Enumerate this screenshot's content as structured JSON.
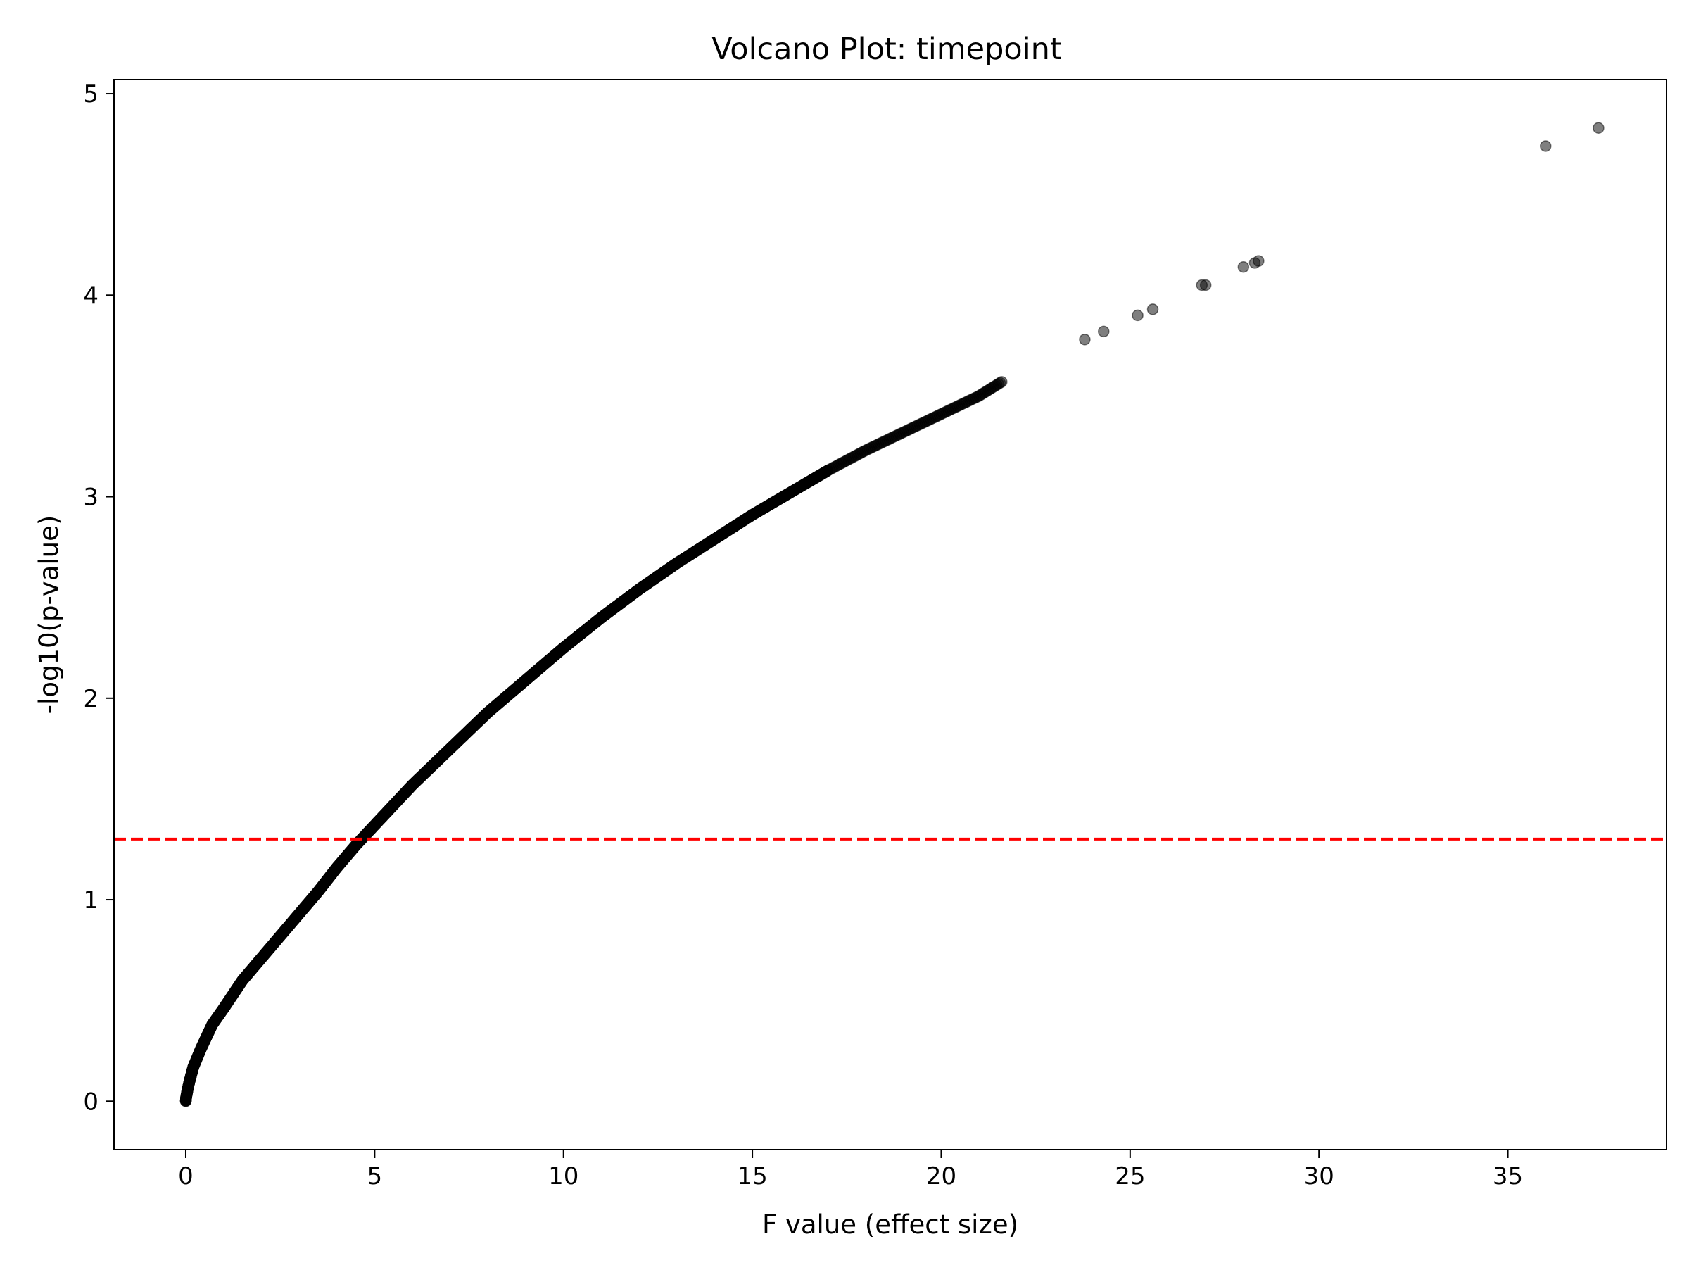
{
  "chart_data": {
    "type": "scatter",
    "title": "Volcano Plot: timepoint",
    "xlabel": "F value (effect size)",
    "ylabel": "-log10(p-value)",
    "xlim": [
      -1.9,
      39.2
    ],
    "ylim": [
      -0.24,
      5.07
    ],
    "xticks": [
      "0",
      "5",
      "10",
      "15",
      "20",
      "25",
      "30",
      "35"
    ],
    "yticks": [
      "0",
      "1",
      "2",
      "3",
      "4",
      "5"
    ],
    "grid": false,
    "legend": "none",
    "marker_color": "#000000",
    "marker_alpha": 0.5,
    "threshold": {
      "y": 1.301,
      "color": "#ff0000",
      "style": "dashed"
    },
    "curve_points": [
      [
        0.0,
        0.0
      ],
      [
        0.01,
        0.02
      ],
      [
        0.05,
        0.06
      ],
      [
        0.1,
        0.1
      ],
      [
        0.2,
        0.17
      ],
      [
        0.4,
        0.26
      ],
      [
        0.7,
        0.38
      ],
      [
        1.0,
        0.46
      ],
      [
        1.5,
        0.6
      ],
      [
        2.0,
        0.71
      ],
      [
        2.5,
        0.82
      ],
      [
        3.0,
        0.93
      ],
      [
        3.5,
        1.04
      ],
      [
        4.0,
        1.16
      ],
      [
        4.5,
        1.27
      ],
      [
        5.0,
        1.37
      ],
      [
        6.0,
        1.57
      ],
      [
        7.0,
        1.75
      ],
      [
        8.0,
        1.93
      ],
      [
        9.0,
        2.09
      ],
      [
        10.0,
        2.25
      ],
      [
        11.0,
        2.4
      ],
      [
        12.0,
        2.54
      ],
      [
        13.0,
        2.67
      ],
      [
        14.0,
        2.79
      ],
      [
        15.0,
        2.91
      ],
      [
        16.0,
        3.02
      ],
      [
        17.0,
        3.13
      ],
      [
        18.0,
        3.23
      ],
      [
        19.0,
        3.32
      ],
      [
        20.0,
        3.41
      ],
      [
        21.0,
        3.5
      ],
      [
        21.6,
        3.57
      ]
    ],
    "outliers": [
      [
        23.8,
        3.78
      ],
      [
        24.3,
        3.82
      ],
      [
        25.2,
        3.9
      ],
      [
        25.6,
        3.93
      ],
      [
        26.9,
        4.05
      ],
      [
        27.0,
        4.05
      ],
      [
        28.0,
        4.14
      ],
      [
        28.3,
        4.16
      ],
      [
        28.4,
        4.17
      ],
      [
        36.0,
        4.74
      ],
      [
        37.4,
        4.83
      ]
    ]
  }
}
